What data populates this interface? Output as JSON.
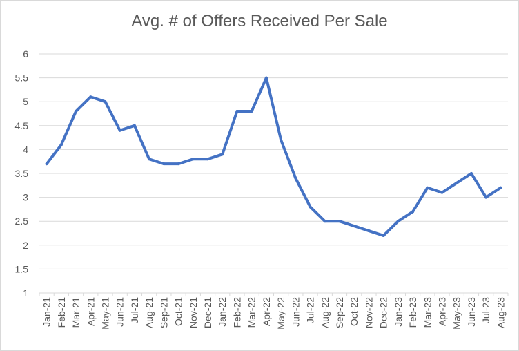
{
  "chart_data": {
    "type": "line",
    "title": "Avg. # of Offers Received Per Sale",
    "xlabel": "",
    "ylabel": "",
    "ylim": [
      1,
      6
    ],
    "yticks": [
      "1",
      "1.5",
      "2",
      "2.5",
      "3",
      "3.5",
      "4",
      "4.5",
      "5",
      "5.5",
      "6"
    ],
    "grid": true,
    "legend": "none",
    "line_color": "#4472C4",
    "categories": [
      "Jan-21",
      "Feb-21",
      "Mar-21",
      "Apr-21",
      "May-21",
      "Jun-21",
      "Jul-21",
      "Aug-21",
      "Sep-21",
      "Oct-21",
      "Nov-21",
      "Dec-21",
      "Jan-22",
      "Feb-22",
      "Mar-22",
      "Apr-22",
      "May-22",
      "Jun-22",
      "Jul-22",
      "Aug-22",
      "Sep-22",
      "Oct-22",
      "Nov-22",
      "Dec-22",
      "Jan-23",
      "Feb-23",
      "Mar-23",
      "Apr-23",
      "May-23",
      "Jun-23",
      "Jul-23",
      "Aug-23"
    ],
    "series": [
      {
        "values": [
          3.7,
          4.1,
          4.8,
          5.1,
          5.0,
          4.4,
          4.5,
          3.8,
          3.7,
          3.7,
          3.8,
          3.8,
          3.9,
          4.8,
          4.8,
          5.5,
          4.2,
          3.4,
          2.8,
          2.5,
          2.5,
          2.4,
          2.3,
          2.2,
          2.5,
          2.7,
          3.2,
          3.1,
          3.3,
          3.5,
          3.0,
          3.2
        ]
      }
    ]
  }
}
